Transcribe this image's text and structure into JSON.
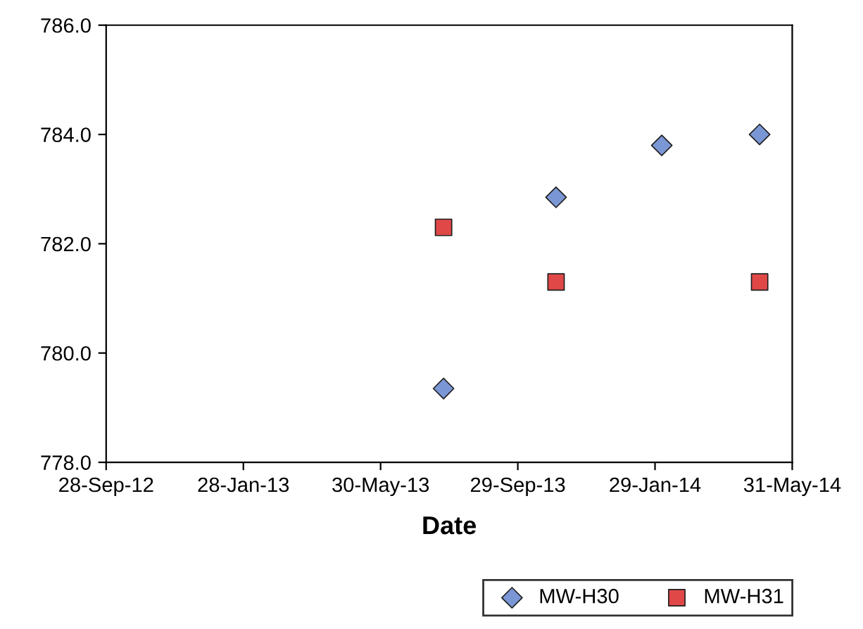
{
  "chart_data": {
    "type": "scatter",
    "xlabel": "Date",
    "xlim": [
      "2012-09-28",
      "2014-05-31"
    ],
    "xticks": [
      {
        "value": "2012-09-28",
        "label": "28-Sep-12"
      },
      {
        "value": "2013-01-28",
        "label": "28-Jan-13"
      },
      {
        "value": "2013-05-30",
        "label": "30-May-13"
      },
      {
        "value": "2013-09-29",
        "label": "29-Sep-13"
      },
      {
        "value": "2014-01-29",
        "label": "29-Jan-14"
      },
      {
        "value": "2014-05-31",
        "label": "31-May-14"
      }
    ],
    "ylim": [
      778,
      786
    ],
    "yticks": [
      {
        "value": 778,
        "label": "778.0"
      },
      {
        "value": 780,
        "label": "780.0"
      },
      {
        "value": 782,
        "label": "782.0"
      },
      {
        "value": 784,
        "label": "784.0"
      },
      {
        "value": 786,
        "label": "786.0"
      }
    ],
    "grid": false,
    "legend": "bottom right",
    "series": [
      {
        "name": "MW-H30",
        "color": "#7b96d4",
        "marker": "diamond",
        "x": [
          "2013-07-25",
          "2013-11-02",
          "2014-02-04",
          "2014-05-02"
        ],
        "values": [
          779.35,
          782.85,
          783.8,
          784.0
        ]
      },
      {
        "name": "MW-H31",
        "color": "#e04848",
        "marker": "square",
        "x": [
          "2013-07-25",
          "2013-11-02",
          "2014-05-02"
        ],
        "values": [
          782.3,
          781.3,
          781.3
        ]
      }
    ]
  }
}
